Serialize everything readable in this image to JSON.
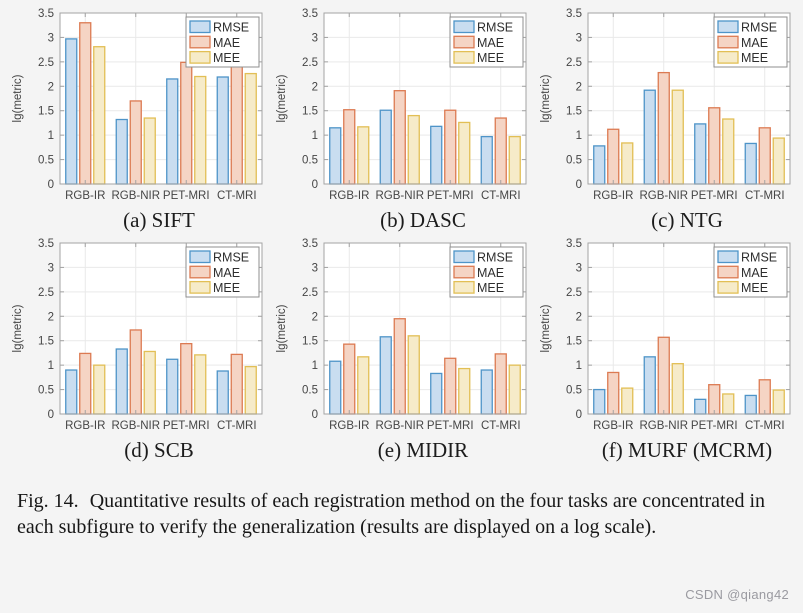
{
  "page": {
    "background": "#f4f4f4",
    "watermark": "CSDN @qiang42"
  },
  "figure_caption": {
    "label": "Fig. 14.",
    "body": "Quantitative results of each registration method on the four tasks are concentrated in each subfigure to verify the generalization (results are displayed on a log scale)."
  },
  "axes": {
    "ylabel": "lg(metric)",
    "ylim": [
      0,
      3.5
    ],
    "ytick_step": 0.5,
    "categories": [
      "RGB-IR",
      "RGB-NIR",
      "PET-MRI",
      "CT-MRI"
    ],
    "legend": [
      "RMSE",
      "MAE",
      "MEE"
    ],
    "legend_position": "top-right",
    "grid": true
  },
  "series_styles": [
    {
      "name": "RMSE",
      "fill": "#c9ddf0",
      "stroke": "#4e94c8"
    },
    {
      "name": "MAE",
      "fill": "#f5d4c4",
      "stroke": "#dc7a52"
    },
    {
      "name": "MEE",
      "fill": "#f6ebc9",
      "stroke": "#e2bf55"
    }
  ],
  "chart_data": [
    {
      "type": "bar",
      "caption": "(a) SIFT",
      "categories": [
        "RGB-IR",
        "RGB-NIR",
        "PET-MRI",
        "CT-MRI"
      ],
      "series": [
        {
          "name": "RMSE",
          "values": [
            2.97,
            1.32,
            2.15,
            2.19
          ]
        },
        {
          "name": "MAE",
          "values": [
            3.3,
            1.7,
            2.49,
            2.53
          ]
        },
        {
          "name": "MEE",
          "values": [
            2.81,
            1.35,
            2.2,
            2.26
          ]
        }
      ],
      "ylabel": "lg(metric)",
      "ylim": [
        0,
        3.5
      ]
    },
    {
      "type": "bar",
      "caption": "(b) DASC",
      "categories": [
        "RGB-IR",
        "RGB-NIR",
        "PET-MRI",
        "CT-MRI"
      ],
      "series": [
        {
          "name": "RMSE",
          "values": [
            1.15,
            1.51,
            1.18,
            0.97
          ]
        },
        {
          "name": "MAE",
          "values": [
            1.52,
            1.91,
            1.51,
            1.35
          ]
        },
        {
          "name": "MEE",
          "values": [
            1.17,
            1.4,
            1.26,
            0.97
          ]
        }
      ],
      "ylabel": "lg(metric)",
      "ylim": [
        0,
        3.5
      ]
    },
    {
      "type": "bar",
      "caption": "(c) NTG",
      "categories": [
        "RGB-IR",
        "RGB-NIR",
        "PET-MRI",
        "CT-MRI"
      ],
      "series": [
        {
          "name": "RMSE",
          "values": [
            0.78,
            1.92,
            1.23,
            0.83
          ]
        },
        {
          "name": "MAE",
          "values": [
            1.12,
            2.28,
            1.56,
            1.15
          ]
        },
        {
          "name": "MEE",
          "values": [
            0.84,
            1.92,
            1.33,
            0.94
          ]
        }
      ],
      "ylabel": "lg(metric)",
      "ylim": [
        0,
        3.5
      ]
    },
    {
      "type": "bar",
      "caption": "(d) SCB",
      "categories": [
        "RGB-IR",
        "RGB-NIR",
        "PET-MRI",
        "CT-MRI"
      ],
      "series": [
        {
          "name": "RMSE",
          "values": [
            0.9,
            1.33,
            1.12,
            0.88
          ]
        },
        {
          "name": "MAE",
          "values": [
            1.24,
            1.72,
            1.44,
            1.22
          ]
        },
        {
          "name": "MEE",
          "values": [
            1.0,
            1.28,
            1.21,
            0.97
          ]
        }
      ],
      "ylabel": "lg(metric)",
      "ylim": [
        0,
        3.5
      ]
    },
    {
      "type": "bar",
      "caption": "(e) MIDIR",
      "categories": [
        "RGB-IR",
        "RGB-NIR",
        "PET-MRI",
        "CT-MRI"
      ],
      "series": [
        {
          "name": "RMSE",
          "values": [
            1.08,
            1.58,
            0.83,
            0.9
          ]
        },
        {
          "name": "MAE",
          "values": [
            1.43,
            1.95,
            1.14,
            1.23
          ]
        },
        {
          "name": "MEE",
          "values": [
            1.17,
            1.6,
            0.93,
            1.0
          ]
        }
      ],
      "ylabel": "lg(metric)",
      "ylim": [
        0,
        3.5
      ]
    },
    {
      "type": "bar",
      "caption": "(f) MURF (MCRM)",
      "categories": [
        "RGB-IR",
        "RGB-NIR",
        "PET-MRI",
        "CT-MRI"
      ],
      "series": [
        {
          "name": "RMSE",
          "values": [
            0.5,
            1.17,
            0.3,
            0.38
          ]
        },
        {
          "name": "MAE",
          "values": [
            0.85,
            1.57,
            0.6,
            0.7
          ]
        },
        {
          "name": "MEE",
          "values": [
            0.53,
            1.03,
            0.41,
            0.49
          ]
        }
      ],
      "ylabel": "lg(metric)",
      "ylim": [
        0,
        3.5
      ]
    }
  ]
}
